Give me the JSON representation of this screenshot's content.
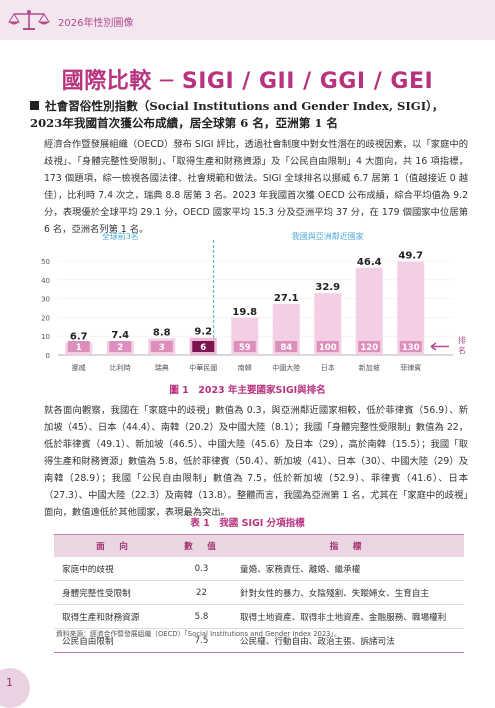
{
  "header": {
    "title": "2026年性別圖像"
  },
  "page_heading": "國際比較 ─ SIGI / GII / GGI / GEI",
  "section_title": "社會習俗性別指數（Social Institutions and Gender Index, SIGI），2023年我國首次獲公布成績，居全球第 6 名，亞洲第 1 名",
  "para1": "經濟合作暨發展組織（OECD）發布 SIGI 評比，透過社會制度中對女性潛在的歧視因素，以「家庭中的歧視」、「身體完整性受限制」、「取得生產和財務資源」及「公民自由限制」4 大面向，共 16 項指標，173 個題項，綜一檢視各國法律、社會規範和做法。SIGI 全球排名以挪威 6.7 居第 1（值越接近 0 越佳），比利時 7.4 次之，瑞典 8.8 居第 3 名。2023 年我國首次獲 OECD 公布成績，綜合平均值為 9.2 分，表現優於全球平均 29.1 分，OECD 國家平均 15.3 分及亞洲平均 37 分，在 179 個國家中位居第 6 名，亞洲名列第 1 名。",
  "chart_data": {
    "type": "bar",
    "categories": [
      "挪威",
      "比利時",
      "瑞典",
      "中華民國",
      "南韓",
      "中國大陸",
      "日本",
      "新加坡",
      "菲律賓"
    ],
    "values": [
      6.7,
      7.4,
      8.8,
      9.2,
      19.8,
      27.1,
      32.9,
      46.4,
      49.7
    ],
    "ranks": [
      "1",
      "2",
      "3",
      "6",
      "59",
      "84",
      "100",
      "120",
      "130"
    ],
    "ylim": [
      0,
      50
    ],
    "yticks": [
      "0",
      "10",
      "20",
      "30",
      "40",
      "50"
    ],
    "group_labels": [
      "全球前3名",
      "我國與亞洲鄰近國家"
    ],
    "rank_label": "排名",
    "colors": {
      "bar": "#f4cfe3",
      "bar_highlight": "#ecb8d4",
      "rank_box": "#dc8fbb",
      "rank_highlight": "#7a1550",
      "group_label": "#4aa9d6",
      "divider": "#4aa9d6",
      "arrow": "#b24b8f"
    }
  },
  "figure_caption": "圖 1　2023 年主要國家SIGI與排名",
  "para2": "就各面向觀察，我國在「家庭中的歧視」數值為 0.3，與亞洲鄰近國家相較，低於菲律賓（56.9）、新加坡（45）、日本（44.4）、南韓（20.2）及中國大陸（8.1）；我國「身體完整性受限制」數值為 22，低於菲律賓（49.1）、新加坡（46.5）、中國大陸（45.6）及日本（29），高於南韓（15.5）；我國「取得生產和財務資源」數值為 5.8，低於菲律賓（50.4）、新加坡（41）、日本（30）、中國大陸（29）及南韓（28.9）；我國「公民自由限制」數值為 7.5，低於新加坡（52.9）、菲律賓（41.6）、日本（27.3）、中國大陸（22.3）及南韓（13.8）。整體而言，我國為亞洲第 1 名，尤其在「家庭中的歧視」面向，數值遠低於其他國家，表現最為突出。",
  "table_caption": "表 1　我國 SIGI 分項指標",
  "table": {
    "headers": [
      "面　向",
      "數　值",
      "指　標"
    ],
    "rows": [
      {
        "dim": "家庭中的歧視",
        "val": "0.3",
        "ind": "童婚、家務責任、離婚、繼承權"
      },
      {
        "dim": "身體完整性受限制",
        "val": "22",
        "ind": "針對女性的暴力、女陰殘割、失蹤婦女、生育自主"
      },
      {
        "dim": "取得生產和財務資源",
        "val": "5.8",
        "ind": "取得土地資產、取得非土地資產、金融服務、職場權利"
      },
      {
        "dim": "公民自由限制",
        "val": "7.5",
        "ind": "公民權、行動自由、政治主張、訴諸司法"
      }
    ]
  },
  "source": "資料來源：經濟合作暨發展組織（OECD）「Social Institutions and Gender Index 2023」。",
  "page_number": "1"
}
